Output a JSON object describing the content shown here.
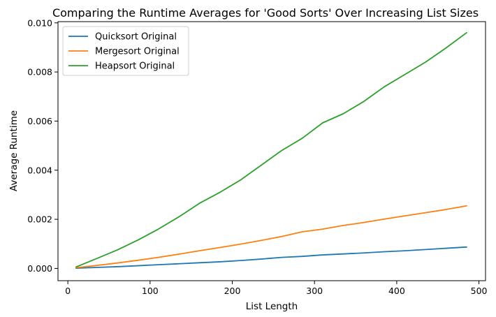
{
  "chart_data": {
    "type": "line",
    "title": "Comparing the Runtime Averages for 'Good Sorts' Over Increasing List Sizes",
    "xlabel": "List Length",
    "ylabel": "Average Runtime",
    "xlim": [
      -12,
      508
    ],
    "ylim": [
      -0.0005,
      0.01005
    ],
    "x_ticks": [
      0,
      100,
      200,
      300,
      400,
      500
    ],
    "y_ticks": [
      0.0,
      0.002,
      0.004,
      0.006,
      0.008,
      0.01
    ],
    "x_tick_labels": [
      "0",
      "100",
      "200",
      "300",
      "400",
      "500"
    ],
    "y_tick_labels": [
      "0.000",
      "0.002",
      "0.004",
      "0.006",
      "0.008",
      "0.010"
    ],
    "grid": false,
    "legend_position": "top-left",
    "x": [
      10,
      35,
      60,
      85,
      110,
      135,
      160,
      185,
      210,
      235,
      260,
      285,
      310,
      335,
      360,
      385,
      410,
      435,
      460,
      485
    ],
    "series": [
      {
        "name": "Quicksort Original",
        "color": "#1f77b4",
        "values": [
          1e-05,
          4e-05,
          7e-05,
          0.00011,
          0.00015,
          0.00019,
          0.00023,
          0.00027,
          0.00032,
          0.00038,
          0.00045,
          0.00049,
          0.00055,
          0.00059,
          0.00063,
          0.00068,
          0.00072,
          0.00077,
          0.00082,
          0.00087
        ]
      },
      {
        "name": "Mergesort Original",
        "color": "#ff7f0e",
        "values": [
          3e-05,
          0.00012,
          0.00022,
          0.00033,
          0.00045,
          0.00058,
          0.00072,
          0.00085,
          0.00099,
          0.00114,
          0.0013,
          0.00149,
          0.0016,
          0.00175,
          0.00187,
          0.00201,
          0.00214,
          0.00227,
          0.0024,
          0.00255
        ]
      },
      {
        "name": "Heapsort Original",
        "color": "#2ca02c",
        "values": [
          6e-05,
          0.0004,
          0.00075,
          0.00115,
          0.0016,
          0.0021,
          0.00265,
          0.0031,
          0.0036,
          0.0042,
          0.0048,
          0.0053,
          0.00593,
          0.0063,
          0.0068,
          0.0074,
          0.0079,
          0.0084,
          0.00898,
          0.0096
        ]
      }
    ]
  }
}
